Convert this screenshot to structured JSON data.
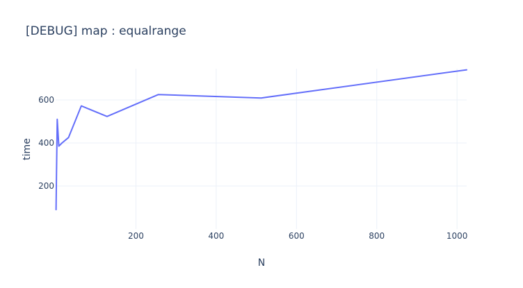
{
  "chart_data": {
    "type": "line",
    "title": "[DEBUG] map : equalrange",
    "xlabel": "N",
    "ylabel": "time",
    "xlim": [
      0,
      1024
    ],
    "ylim": [
      0,
      745
    ],
    "x_ticks": [
      200,
      400,
      600,
      800,
      1000
    ],
    "y_ticks": [
      200,
      400,
      600
    ],
    "grid": true,
    "legend": "none",
    "colors": {
      "series": "#636efa",
      "text": "#2a3f5f",
      "grid": "#ebf0f8",
      "background": "#ffffff"
    },
    "series": [
      {
        "x": [
          1,
          2,
          4,
          8,
          16,
          32,
          64,
          128,
          256,
          512,
          1024
        ],
        "y": [
          90,
          250,
          510,
          385,
          400,
          425,
          572,
          523,
          625,
          609,
          740
        ]
      }
    ]
  }
}
